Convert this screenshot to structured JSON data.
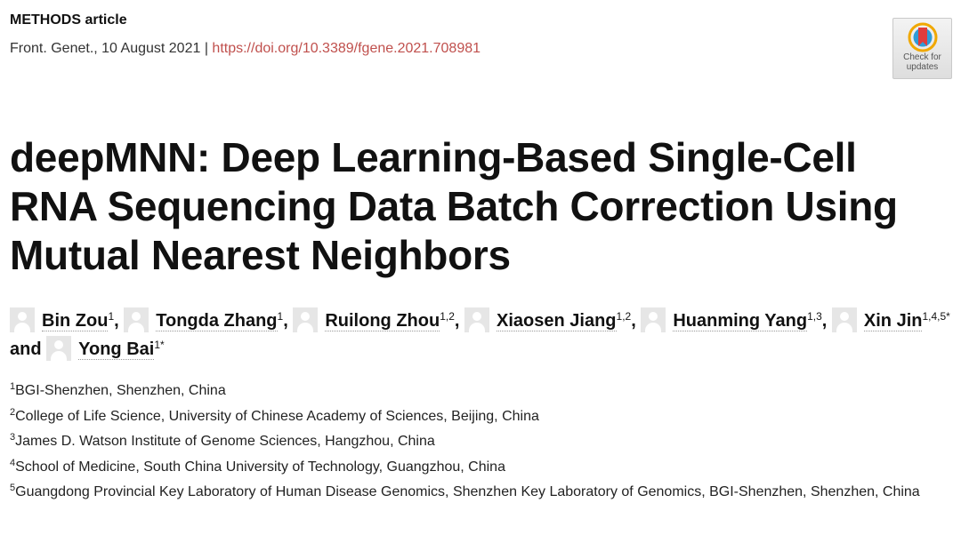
{
  "header": {
    "article_type": "METHODS article",
    "journal_date": "Front. Genet., 10 August 2021",
    "separator": " | ",
    "doi": "https://doi.org/10.3389/fgene.2021.708981"
  },
  "badge": {
    "line1": "Check for",
    "line2": "updates",
    "colors": {
      "ring": "#f0a800",
      "ribbon": "#e03c3c",
      "inner": "#2f9bd6"
    }
  },
  "title": "deepMNN: Deep Learning-Based Single-Cell RNA Sequencing Data Batch Correction Using Mutual Nearest Neighbors",
  "authors": [
    {
      "name": "Bin Zou",
      "sup": "1",
      "sep": ", "
    },
    {
      "name": "Tongda Zhang",
      "sup": "1",
      "sep": ", "
    },
    {
      "name": "Ruilong Zhou",
      "sup": "1,2",
      "sep": ", "
    },
    {
      "name": "Xiaosen Jiang",
      "sup": "1,2",
      "sep": ", "
    },
    {
      "name": "Huanming Yang",
      "sup": "1,3",
      "sep": ", "
    },
    {
      "name": "Xin Jin",
      "sup": "1,4,5*",
      "sep": " and "
    },
    {
      "name": "Yong Bai",
      "sup": "1*",
      "sep": ""
    }
  ],
  "affiliations": [
    {
      "num": "1",
      "text": "BGI-Shenzhen, Shenzhen, China"
    },
    {
      "num": "2",
      "text": "College of Life Science, University of Chinese Academy of Sciences, Beijing, China"
    },
    {
      "num": "3",
      "text": "James D. Watson Institute of Genome Sciences, Hangzhou, China"
    },
    {
      "num": "4",
      "text": "School of Medicine, South China University of Technology, Guangzhou, China"
    },
    {
      "num": "5",
      "text": "Guangdong Provincial Key Laboratory of Human Disease Genomics, Shenzhen Key Laboratory of Genomics, BGI-Shenzhen, Shenzhen, China"
    }
  ]
}
